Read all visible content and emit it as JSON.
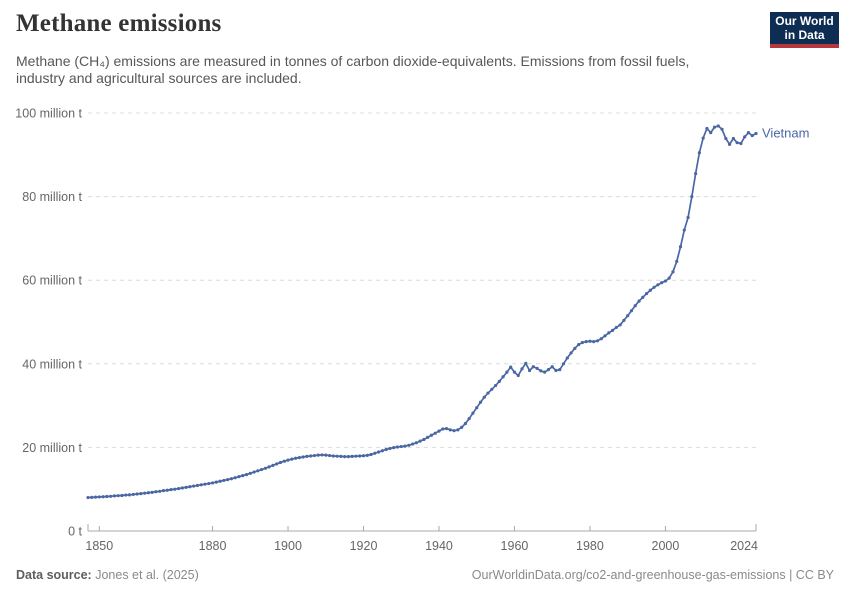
{
  "header": {
    "title": "Methane emissions",
    "subtitle": "Methane (CH₄) emissions are measured in tonnes of carbon dioxide-equivalents. Emissions from fossil fuels, industry and agricultural sources are included.",
    "logo_line1": "Our World",
    "logo_line2": "in Data"
  },
  "footer": {
    "source_label": "Data source:",
    "source_value": "Jones et al. (2025)",
    "attribution": "OurWorldinData.org/co2-and-greenhouse-gas-emissions | CC BY"
  },
  "colors": {
    "series_blue": "#4a67a3",
    "grid": "#dcdcdc",
    "axis": "#a8a8a8",
    "tick_text": "#666666",
    "logo_navy": "#0d2d52",
    "logo_red": "#b5383f"
  },
  "chart_data": {
    "type": "line",
    "title": "Methane emissions",
    "unit": "tonnes of carbon dioxide-equivalents",
    "entity_label": "Vietnam",
    "x_start": 1847,
    "x_end": 2024,
    "xticks": [
      1850,
      1880,
      1900,
      1920,
      1940,
      1960,
      1980,
      2000,
      2024
    ],
    "yticks": [
      {
        "value": 0,
        "label": "0 t"
      },
      {
        "value": 20,
        "label": "20 million t"
      },
      {
        "value": 40,
        "label": "40 million t"
      },
      {
        "value": 60,
        "label": "60 million t"
      },
      {
        "value": 80,
        "label": "80 million t"
      },
      {
        "value": 100,
        "label": "100 million t"
      }
    ],
    "ylim": [
      0,
      100
    ],
    "value_unit_scale": "million tonnes",
    "grid": "horizontal-dashed",
    "legend_position": "end-of-line",
    "series": [
      {
        "name": "Vietnam",
        "color": "#4a67a3",
        "values": [
          8.0,
          8.05,
          8.1,
          8.15,
          8.2,
          8.25,
          8.3,
          8.4,
          8.45,
          8.5,
          8.6,
          8.65,
          8.75,
          8.85,
          8.95,
          9.05,
          9.15,
          9.25,
          9.4,
          9.5,
          9.65,
          9.75,
          9.9,
          10.0,
          10.15,
          10.3,
          10.45,
          10.6,
          10.75,
          10.9,
          11.05,
          11.2,
          11.35,
          11.5,
          11.7,
          11.9,
          12.1,
          12.3,
          12.5,
          12.75,
          13.0,
          13.25,
          13.5,
          13.8,
          14.1,
          14.4,
          14.7,
          15.0,
          15.35,
          15.7,
          16.05,
          16.4,
          16.7,
          16.95,
          17.2,
          17.4,
          17.55,
          17.7,
          17.85,
          17.95,
          18.05,
          18.15,
          18.2,
          18.15,
          18.05,
          17.95,
          17.9,
          17.85,
          17.8,
          17.8,
          17.85,
          17.9,
          17.95,
          18.0,
          18.1,
          18.3,
          18.6,
          18.9,
          19.2,
          19.5,
          19.75,
          19.95,
          20.1,
          20.2,
          20.3,
          20.5,
          20.8,
          21.1,
          21.5,
          21.9,
          22.4,
          22.9,
          23.4,
          23.9,
          24.4,
          24.5,
          24.2,
          24.0,
          24.2,
          24.8,
          25.7,
          26.9,
          28.2,
          29.5,
          30.8,
          32.0,
          33.0,
          33.9,
          34.8,
          35.8,
          36.9,
          38.0,
          39.2,
          38.0,
          37.2,
          38.8,
          40.1,
          38.4,
          39.3,
          38.9,
          38.3,
          38.0,
          38.6,
          39.3,
          38.4,
          38.6,
          40.0,
          41.4,
          42.6,
          43.7,
          44.6,
          45.1,
          45.3,
          45.4,
          45.3,
          45.5,
          46.0,
          46.7,
          47.4,
          48.0,
          48.7,
          49.3,
          50.4,
          51.5,
          52.7,
          53.9,
          55.0,
          55.9,
          56.8,
          57.6,
          58.3,
          58.9,
          59.4,
          59.8,
          60.5,
          62.0,
          64.5,
          68.0,
          72.0,
          75.0,
          80.0,
          85.5,
          90.5,
          94.0,
          96.3,
          95.3,
          96.6,
          96.9,
          96.1,
          93.9,
          92.5,
          93.9,
          92.9,
          92.7,
          94.3,
          95.3,
          94.6,
          95.1
        ]
      }
    ]
  }
}
